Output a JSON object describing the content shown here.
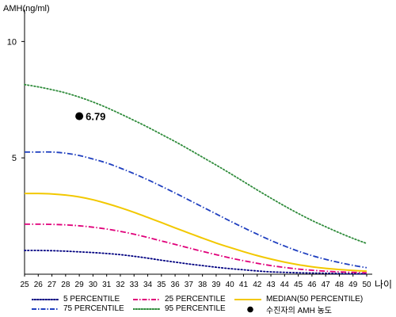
{
  "chart_data": {
    "type": "line",
    "title": "",
    "ylabel": "AMH(ng/ml)",
    "xlabel": "나이",
    "xlim": [
      25,
      50
    ],
    "ylim": [
      0,
      11
    ],
    "yticks": [
      5,
      10
    ],
    "x": [
      25,
      26,
      27,
      28,
      29,
      30,
      31,
      32,
      33,
      34,
      35,
      36,
      37,
      38,
      39,
      40,
      41,
      42,
      43,
      44,
      45,
      46,
      47,
      48,
      49,
      50
    ],
    "grid": false,
    "legend_position": "bottom",
    "series": [
      {
        "name": "5 PERCENTILE",
        "color": "#000080",
        "style": "dotted",
        "values": [
          1.02,
          1.02,
          1.01,
          0.99,
          0.96,
          0.93,
          0.89,
          0.84,
          0.77,
          0.69,
          0.6,
          0.52,
          0.44,
          0.37,
          0.3,
          0.24,
          0.19,
          0.14,
          0.1,
          0.08,
          0.06,
          0.05,
          0.04,
          0.03,
          0.02,
          0.02
        ]
      },
      {
        "name": "25 PERCENTILE",
        "color": "#E0007A",
        "style": "dashdot",
        "values": [
          2.15,
          2.15,
          2.14,
          2.12,
          2.08,
          2.02,
          1.94,
          1.84,
          1.72,
          1.58,
          1.43,
          1.28,
          1.13,
          0.98,
          0.84,
          0.7,
          0.58,
          0.47,
          0.37,
          0.29,
          0.22,
          0.17,
          0.13,
          0.1,
          0.08,
          0.06
        ]
      },
      {
        "name": "MEDIAN(50 PERCENTILE)",
        "color": "#F2C800",
        "style": "solid",
        "values": [
          3.47,
          3.47,
          3.45,
          3.4,
          3.32,
          3.2,
          3.04,
          2.86,
          2.66,
          2.44,
          2.22,
          1.99,
          1.77,
          1.55,
          1.34,
          1.15,
          0.97,
          0.8,
          0.65,
          0.52,
          0.41,
          0.32,
          0.25,
          0.2,
          0.16,
          0.13
        ]
      },
      {
        "name": "75 PERCENTILE",
        "color": "#1F3FBF",
        "style": "dashdot",
        "values": [
          5.25,
          5.25,
          5.25,
          5.2,
          5.1,
          4.95,
          4.78,
          4.56,
          4.32,
          4.06,
          3.78,
          3.49,
          3.19,
          2.89,
          2.59,
          2.29,
          2.0,
          1.72,
          1.45,
          1.21,
          0.99,
          0.8,
          0.64,
          0.5,
          0.38,
          0.28
        ]
      },
      {
        "name": "95 PERCENTILE",
        "color": "#2E8B3A",
        "style": "dotted",
        "values": [
          8.15,
          8.05,
          7.93,
          7.79,
          7.61,
          7.4,
          7.16,
          6.89,
          6.61,
          6.32,
          6.01,
          5.7,
          5.37,
          5.03,
          4.69,
          4.34,
          3.98,
          3.62,
          3.27,
          2.93,
          2.61,
          2.31,
          2.04,
          1.78,
          1.54,
          1.32
        ]
      }
    ],
    "point": {
      "name": "수진자의 AMH 농도",
      "x": 29,
      "y": 6.79,
      "label": "6.79",
      "color": "#000000"
    }
  },
  "legend": [
    {
      "label": "5 PERCENTILE",
      "color": "#000080",
      "style": "dotted"
    },
    {
      "label": "25 PERCENTILE",
      "color": "#E0007A",
      "style": "dashdot"
    },
    {
      "label": "MEDIAN(50 PERCENTILE)",
      "color": "#F2C800",
      "style": "solid"
    },
    {
      "label": "75 PERCENTILE",
      "color": "#1F3FBF",
      "style": "dashdot"
    },
    {
      "label": "95 PERCENTILE",
      "color": "#2E8B3A",
      "style": "dotted"
    },
    {
      "label": "수진자의 AMH 농도",
      "color": "#000000",
      "style": "marker"
    }
  ]
}
